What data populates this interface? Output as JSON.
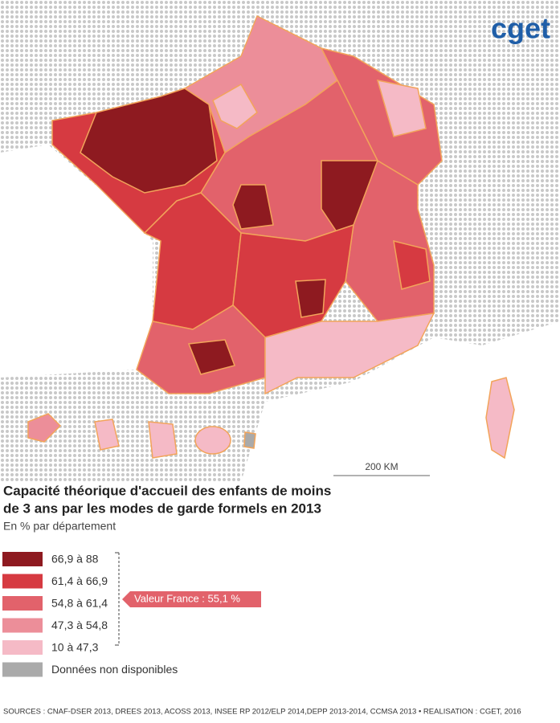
{
  "logo": "cget",
  "map": {
    "scale_label": "200 KM"
  },
  "title_lines": [
    "Capacité théorique d'accueil des enfants de moins",
    "de 3 ans par les modes de garde formels en 2013"
  ],
  "subtitle": "En % par département",
  "legend": [
    {
      "label": "66,9 à 88",
      "color": "#8e1a20"
    },
    {
      "label": "61,4 à 66,9",
      "color": "#d63a41"
    },
    {
      "label": "54,8 à 61,4",
      "color": "#e2626b"
    },
    {
      "label": "47,3 à 54,8",
      "color": "#ec8e99"
    },
    {
      "label": "10 à 47,3",
      "color": "#f5bac6"
    },
    {
      "label": "Données non disponibles",
      "color": "#aaaaaa"
    }
  ],
  "france_value": "Valeur France : 55,1 %",
  "sources": "SOURCES : CNAF-DSER 2013, DREES 2013, ACOSS 2013, INSEE RP 2012/ELP 2014,DEPP 2013-2014, CCMSA 2013 • REALISATION : CGET, 2016"
}
